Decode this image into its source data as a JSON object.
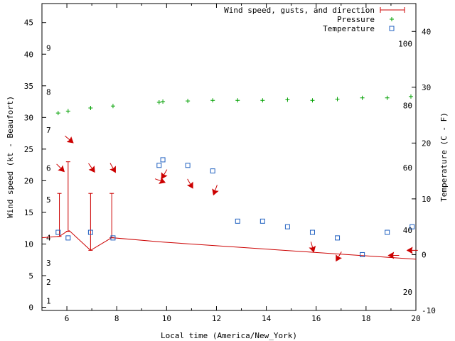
{
  "chart_data": {
    "type": "line",
    "title": "",
    "xlabel": "Local time (America/New_York)",
    "ylabel": "Wind speed (kt - Beaufort)",
    "y2label": "Temperature (C - F)",
    "xlim": [
      5,
      20
    ],
    "ylim": [
      -0.5,
      48
    ],
    "y2lim": [
      -10,
      45
    ],
    "grid": false,
    "legend_placement": "top-right",
    "x_ticks": [
      6,
      8,
      10,
      12,
      14,
      16,
      18,
      20
    ],
    "y_ticks": [
      0,
      5,
      10,
      15,
      20,
      25,
      30,
      35,
      40,
      45
    ],
    "y2_ticks": [
      -10,
      0,
      10,
      20,
      30,
      40
    ],
    "beaufort_labels": [
      {
        "label": "1",
        "y": 1
      },
      {
        "label": "2",
        "y": 4
      },
      {
        "label": "3",
        "y": 7
      },
      {
        "label": "4",
        "y": 11
      },
      {
        "label": "5",
        "y": 17
      },
      {
        "label": "6",
        "y": 22
      },
      {
        "label": "7",
        "y": 28
      },
      {
        "label": "8",
        "y": 34
      },
      {
        "label": "9",
        "y": 41
      }
    ],
    "fahrenheit_labels": [
      {
        "label": "20",
        "y2": -6.7
      },
      {
        "label": "40",
        "y2": 4.4
      },
      {
        "label": "60",
        "y2": 15.6
      },
      {
        "label": "80",
        "y2": 26.7
      },
      {
        "label": "100",
        "y2": 37.8
      }
    ],
    "series": [
      {
        "name": "Wind speed, gusts, and direction",
        "color": "#cc0000",
        "type": "line",
        "x": [
          5.0,
          5.7,
          6.0,
          6.1,
          6.95,
          7.8,
          9.85,
          20.0
        ],
        "values": [
          11.0,
          11.2,
          12.0,
          12.1,
          9.0,
          11.0,
          10.3,
          7.6
        ],
        "gusts": [
          {
            "x": 5.7,
            "low": 11.2,
            "high": 18.0
          },
          {
            "x": 6.05,
            "low": 12.0,
            "high": 23.0
          },
          {
            "x": 6.95,
            "low": 9.0,
            "high": 18.0
          },
          {
            "x": 7.8,
            "low": 11.0,
            "high": 18.0
          }
        ],
        "direction_arrows": [
          {
            "x": 5.75,
            "y": 22.0,
            "angle": 45
          },
          {
            "x": 6.1,
            "y": 26.5,
            "angle": 40
          },
          {
            "x": 7.0,
            "y": 22.0,
            "angle": 55
          },
          {
            "x": 7.85,
            "y": 22.0,
            "angle": 60
          },
          {
            "x": 9.75,
            "y": 20.0,
            "angle": 20
          },
          {
            "x": 9.9,
            "y": 21.0,
            "angle": 120
          },
          {
            "x": 10.95,
            "y": 19.5,
            "angle": 60
          },
          {
            "x": 11.95,
            "y": 18.5,
            "angle": 110
          },
          {
            "x": 15.85,
            "y": 9.5,
            "angle": 75
          },
          {
            "x": 16.9,
            "y": 8.0,
            "angle": 120
          },
          {
            "x": 19.1,
            "y": 8.2,
            "angle": 180
          },
          {
            "x": 19.85,
            "y": 9.0,
            "angle": 180
          }
        ]
      },
      {
        "name": "Pressure",
        "color": "#00a000",
        "type": "scatter",
        "marker": "plus",
        "x": [
          5.65,
          6.05,
          6.95,
          7.85,
          9.7,
          9.85,
          10.85,
          11.85,
          12.85,
          13.85,
          14.85,
          15.85,
          16.85,
          17.85,
          18.85,
          19.8
        ],
        "values": [
          30.7,
          31.0,
          31.5,
          31.8,
          32.4,
          32.5,
          32.6,
          32.7,
          32.7,
          32.7,
          32.8,
          32.7,
          32.9,
          33.1,
          33.1,
          33.3
        ]
      },
      {
        "name": "Temperature",
        "color": "#2060c0",
        "type": "scatter",
        "marker": "square",
        "axis": "y2",
        "x": [
          5.65,
          6.05,
          6.95,
          7.85,
          9.7,
          9.85,
          10.85,
          11.85,
          12.85,
          13.85,
          14.85,
          15.85,
          16.85,
          17.85,
          18.85,
          19.85
        ],
        "values": [
          4,
          3,
          4,
          3,
          16,
          17,
          16,
          15,
          6,
          6,
          5,
          4,
          3,
          0,
          4,
          5
        ]
      }
    ]
  }
}
